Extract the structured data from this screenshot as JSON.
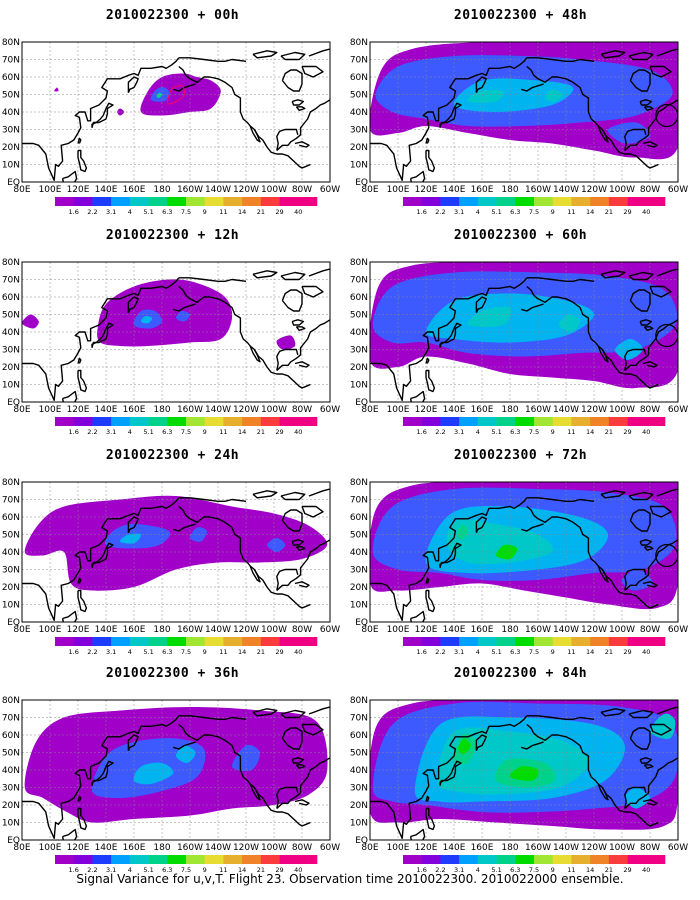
{
  "footer": "Signal Variance for u,v,T. Flight 23. Observation time 2010022300. 2010022000 ensemble.",
  "lat_labels": [
    "80N",
    "70N",
    "60N",
    "50N",
    "40N",
    "30N",
    "20N",
    "10N",
    "EQ"
  ],
  "lon_labels": [
    "80E",
    "100E",
    "120E",
    "140E",
    "160E",
    "180",
    "160W",
    "140W",
    "120W",
    "100W",
    "80W",
    "60W"
  ],
  "colorbar": {
    "labels": [
      "1.6",
      "2.2",
      "3.1",
      "4",
      "5.1",
      "6.3",
      "7.5",
      "9",
      "11",
      "14",
      "21",
      "29",
      "40"
    ],
    "colors": [
      "#a000c8",
      "#8200dc",
      "#1e3cff",
      "#00a0ff",
      "#00c8c8",
      "#00d28c",
      "#00dc00",
      "#a0e632",
      "#e6dc32",
      "#e6af2d",
      "#f08228",
      "#fa3c3c",
      "#f00082"
    ]
  },
  "panels": [
    {
      "id": "p00",
      "title": "2010022300 + 00h",
      "level": 0
    },
    {
      "id": "p12",
      "title": "2010022300 + 12h",
      "level": 1
    },
    {
      "id": "p24",
      "title": "2010022300 + 24h",
      "level": 2
    },
    {
      "id": "p36",
      "title": "2010022300 + 36h",
      "level": 3
    },
    {
      "id": "p48",
      "title": "2010022300 + 48h",
      "level": 4
    },
    {
      "id": "p60",
      "title": "2010022300 + 60h",
      "level": 5
    },
    {
      "id": "p72",
      "title": "2010022300 + 72h",
      "level": 6
    },
    {
      "id": "p84",
      "title": "2010022300 + 84h",
      "level": 7
    }
  ]
}
